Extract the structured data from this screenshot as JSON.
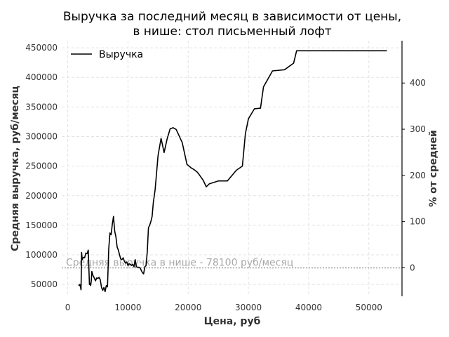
{
  "chart_data": {
    "type": "line",
    "title_line1": "Выручка за последний месяц в зависимости от цены,",
    "title_line2": "в нише: стол письменный лофт",
    "xlabel": "Цена, руб",
    "ylabel": "Средняя выручка, руб/месяц",
    "ylabel_right": "% от средней",
    "xlim": [
      -1000,
      55500
    ],
    "ylim": [
      30000,
      462000
    ],
    "x_ticks": [
      0,
      10000,
      20000,
      30000,
      40000,
      50000
    ],
    "y_ticks": [
      50000,
      100000,
      150000,
      200000,
      250000,
      300000,
      350000,
      400000,
      450000
    ],
    "y_right_ticks": [
      0,
      100,
      200,
      300,
      400
    ],
    "grid": true,
    "legend_position": "top-left",
    "series": [
      {
        "name": "Выручка",
        "color": "#000000",
        "x": [
          1800,
          2000,
          2200,
          2300,
          2400,
          2600,
          2800,
          3000,
          3200,
          3400,
          3600,
          3700,
          3800,
          3900,
          4000,
          4100,
          4200,
          4400,
          4600,
          4800,
          5000,
          5200,
          5400,
          5600,
          5800,
          6000,
          6200,
          6400,
          6600,
          6800,
          7000,
          7200,
          7400,
          7600,
          7800,
          8000,
          8200,
          8400,
          8600,
          8800,
          9000,
          9200,
          9400,
          9600,
          9800,
          10000,
          10200,
          10400,
          10600,
          10800,
          11000,
          11200,
          11400,
          11600,
          11800,
          12000,
          12200,
          12400,
          12600,
          12800,
          13000,
          13200,
          13400,
          13600,
          13800,
          14000,
          14200,
          14500,
          15000,
          15500,
          16000,
          16500,
          17000,
          17500,
          18000,
          19000,
          19800,
          20500,
          21000,
          21500,
          21800,
          22500,
          23000,
          23500,
          25000,
          26500,
          28000,
          29000,
          29500,
          30000,
          31000,
          32000,
          32500,
          34000,
          36000,
          37500,
          38000,
          39000,
          40000,
          42000,
          44000,
          53000
        ],
        "y": [
          48000,
          50000,
          41000,
          104000,
          92000,
          96000,
          95000,
          103000,
          102000,
          108000,
          50000,
          52000,
          48000,
          56000,
          72000,
          68000,
          65000,
          61000,
          56000,
          61000,
          60000,
          62000,
          58000,
          45000,
          40000,
          45000,
          38000,
          48000,
          46000,
          110000,
          137000,
          134000,
          152000,
          165000,
          140000,
          130000,
          113000,
          108000,
          100000,
          93000,
          92000,
          95000,
          89000,
          86000,
          88000,
          82000,
          85000,
          84000,
          82000,
          84000,
          80000,
          92000,
          80000,
          79000,
          79000,
          78000,
          74000,
          70000,
          68000,
          80000,
          82000,
          105000,
          146000,
          150000,
          156000,
          165000,
          188000,
          210000,
          268000,
          297000,
          273000,
          296000,
          313000,
          315000,
          312000,
          290000,
          253000,
          247000,
          244000,
          240000,
          236000,
          226000,
          215000,
          220000,
          225000,
          225000,
          243000,
          250000,
          305000,
          330000,
          347000,
          348000,
          384000,
          411000,
          413000,
          424000,
          445000,
          445000,
          445000,
          445000,
          445000,
          445000
        ]
      }
    ],
    "reference_line": {
      "value": 78100,
      "label": "Средняя выручка в нише - 78100 руб/месяц",
      "color": "#a0a0a0"
    }
  }
}
